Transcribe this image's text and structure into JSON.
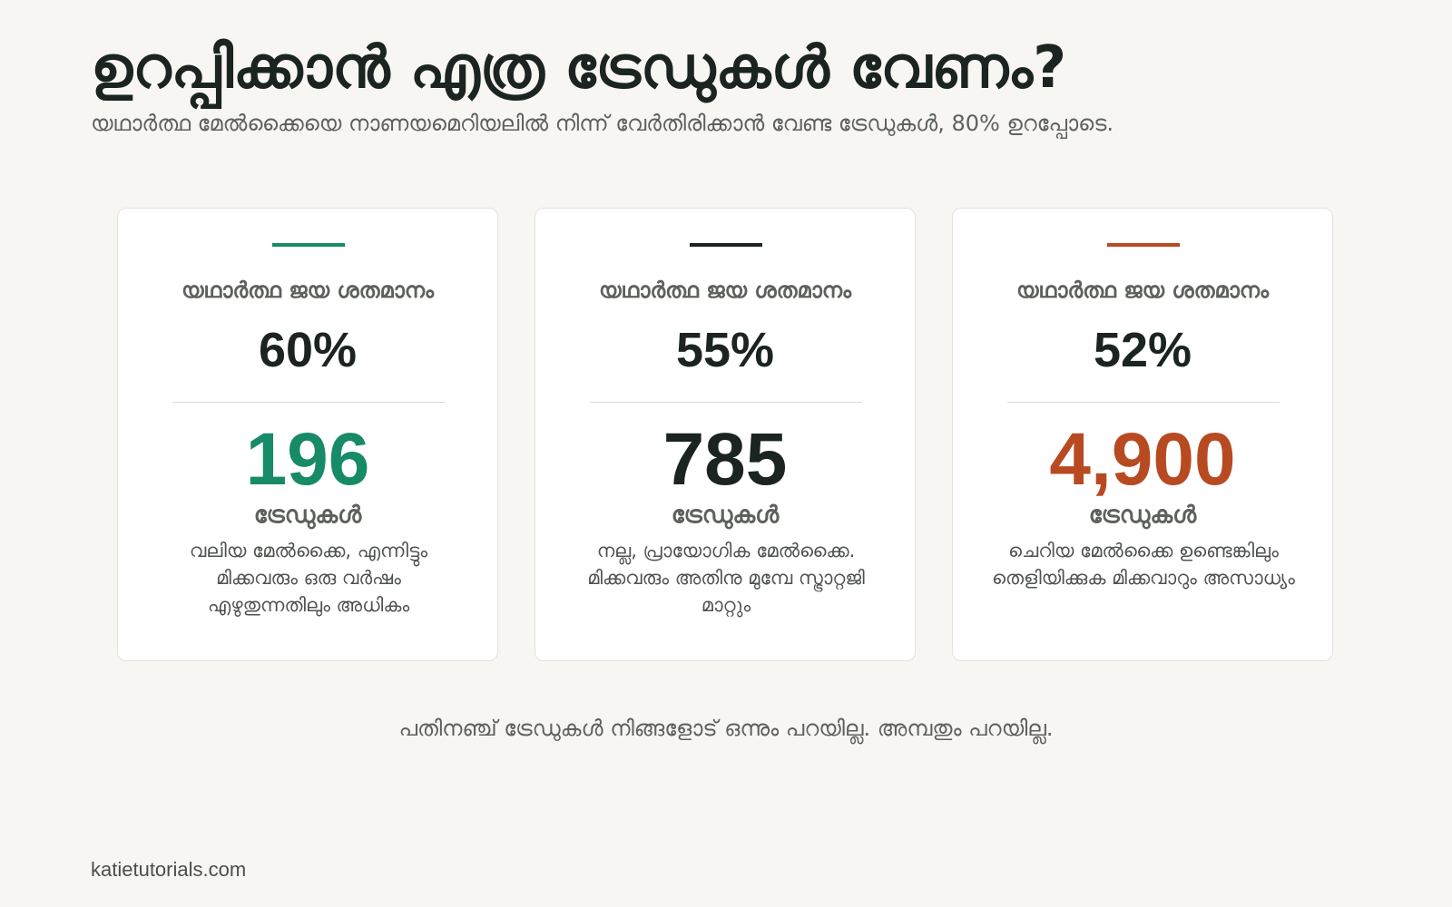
{
  "title": "ഉറപ്പിക്കാൻ എത്ര ട്രേഡുകൾ വേണം?",
  "subtitle": "യഥാർത്ഥ മേൽക്കൈയെ നാണയമെറിയലിൽ നിന്ന് വേർതിരിക്കാൻ വേണ്ട ട്രേഡുകൾ, 80% ഉറപ്പോടെ.",
  "cards": [
    {
      "label": "യഥാർത്ഥ ജയ ശതമാനം",
      "win_rate": "60%",
      "trades": "196",
      "unit": "ട്രേഡുകൾ",
      "description": "വലിയ മേൽക്കൈ, എന്നിട്ടും മിക്കവരും ഒരു വർഷം എഴുതുന്നതിലും അധികം",
      "accent": "#178a68"
    },
    {
      "label": "യഥാർത്ഥ ജയ ശതമാനം",
      "win_rate": "55%",
      "trades": "785",
      "unit": "ട്രേഡുകൾ",
      "description": "നല്ല, പ്രായോഗിക മേൽക്കൈ. മിക്കവരും അതിനു മുമ്പേ സ്ട്രാറ്റജി മാറ്റും",
      "accent": "#1b2421"
    },
    {
      "label": "യഥാർത്ഥ ജയ ശതമാനം",
      "win_rate": "52%",
      "trades": "4,900",
      "unit": "ട്രേഡുകൾ",
      "description": "ചെറിയ മേൽക്കൈ ഉണ്ടെങ്കിലും തെളിയിക്കുക മിക്കവാറും അസാധ്യം",
      "accent": "#b84a22"
    }
  ],
  "footer_note": "പതിനഞ്ച് ട്രേഡുകൾ നിങ്ങളോട് ഒന്നും പറയില്ല. അമ്പതും പറയില്ല.",
  "site": "katietutorials.com"
}
